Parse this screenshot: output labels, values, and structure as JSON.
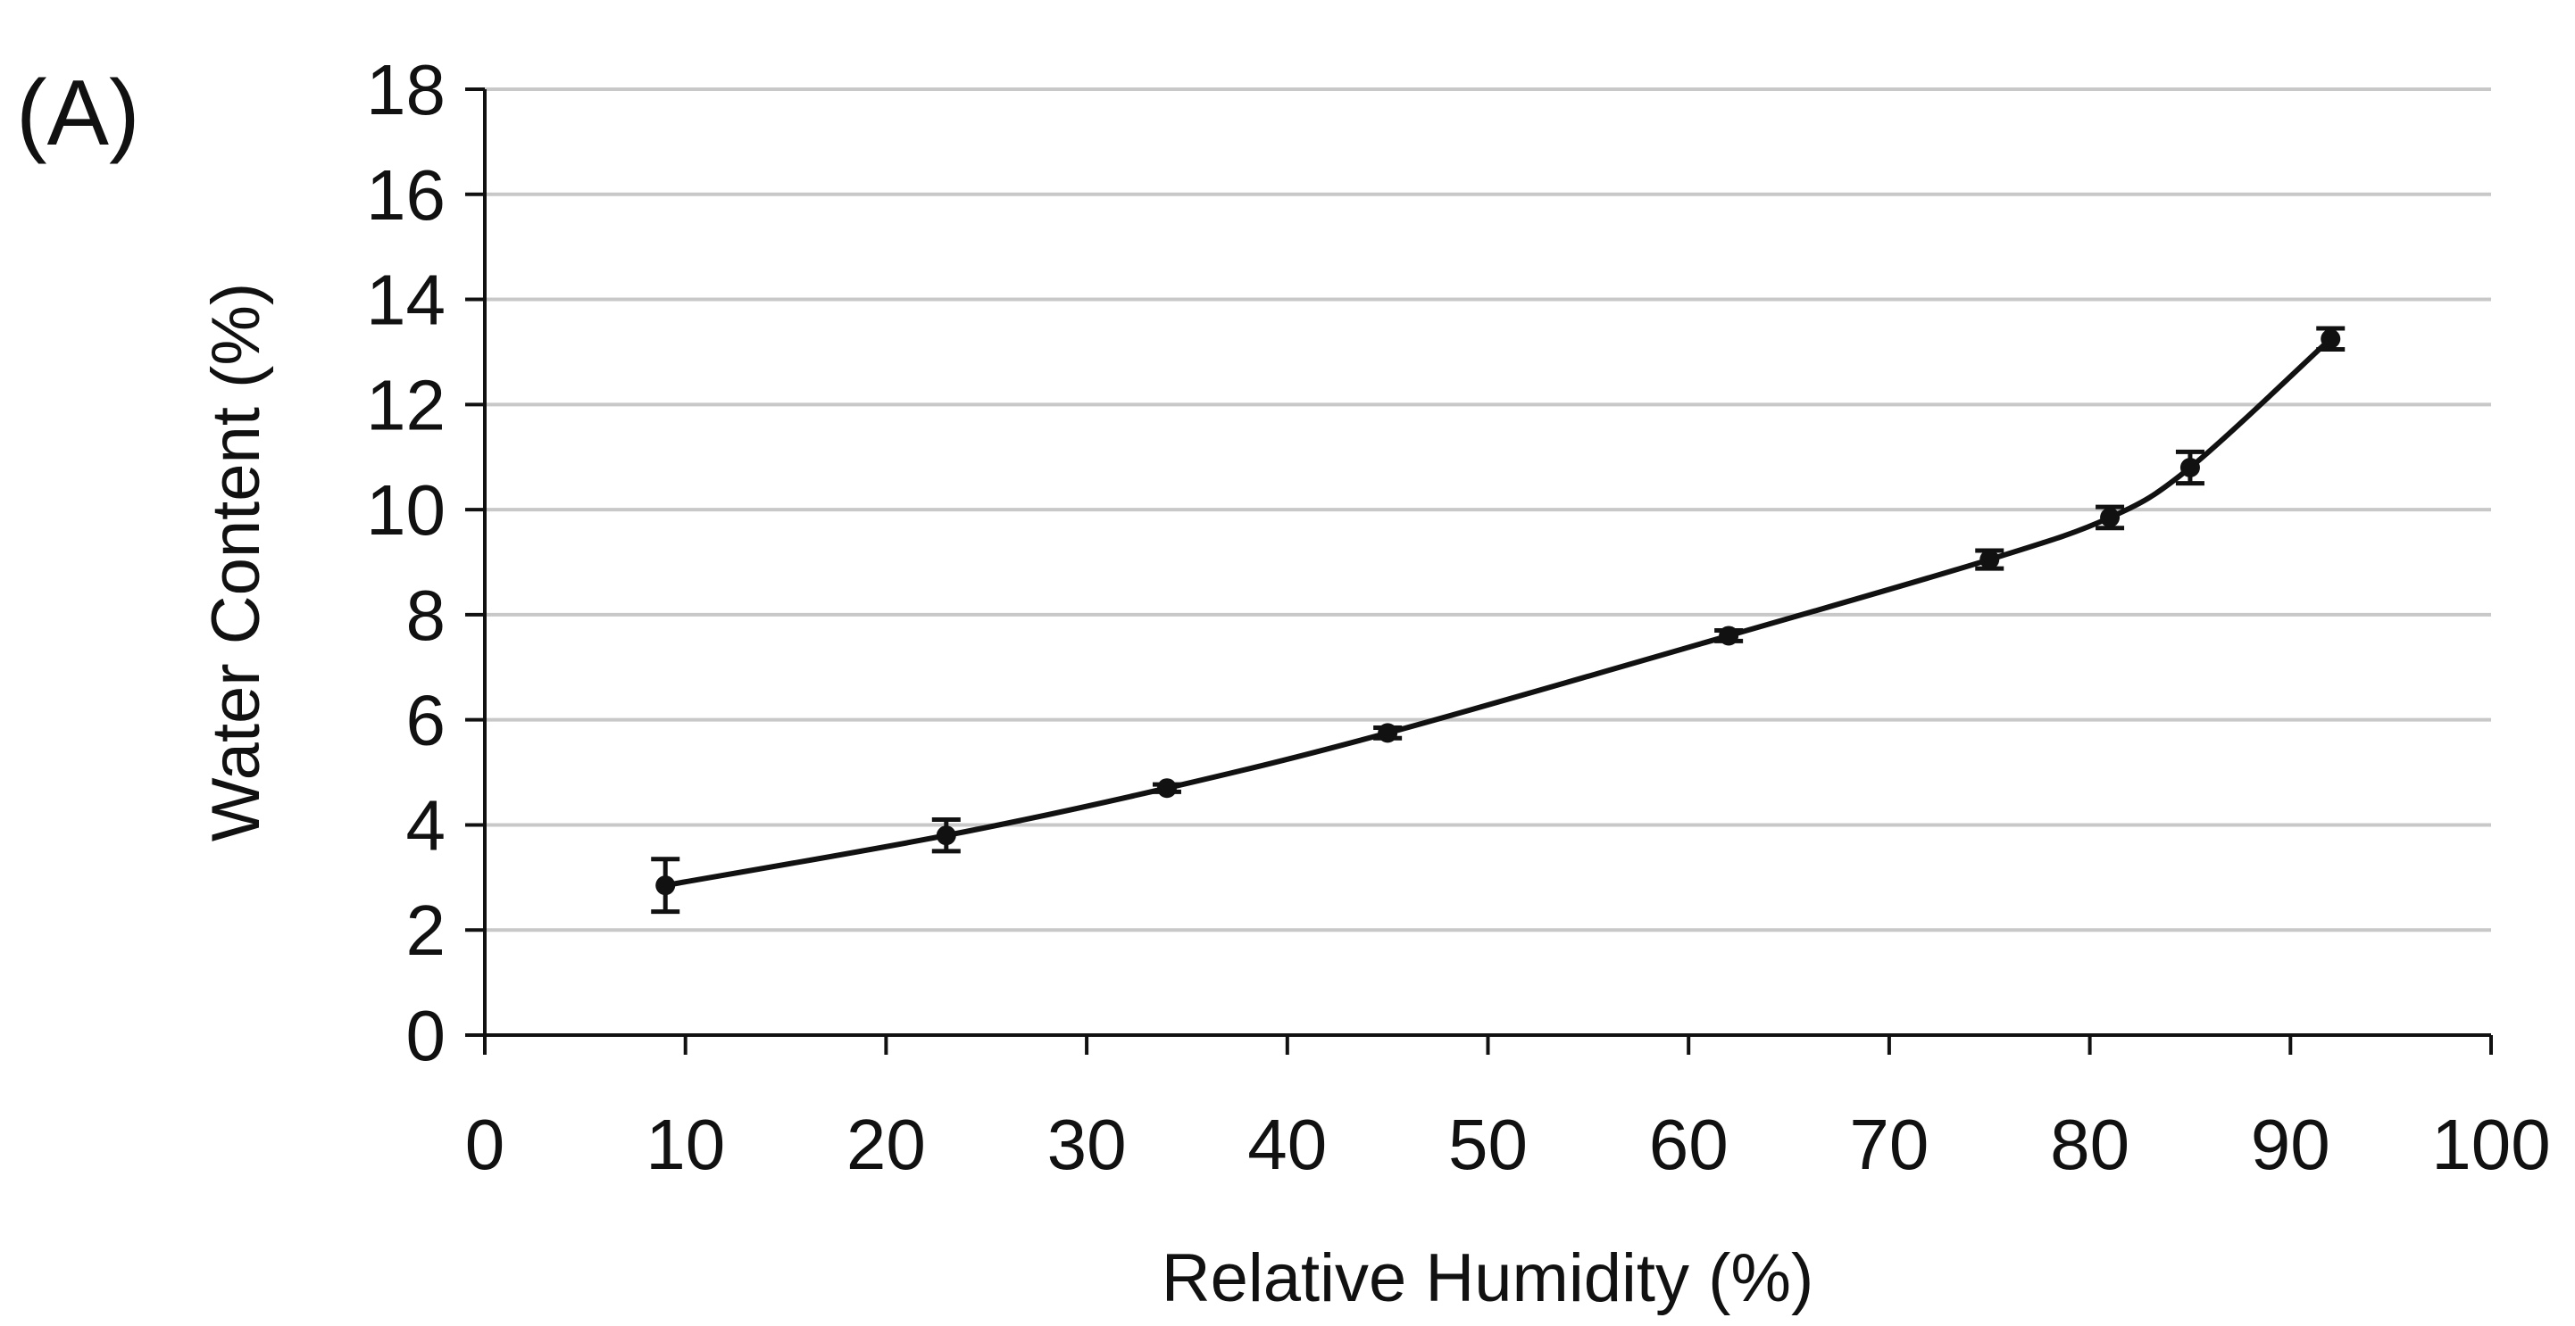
{
  "panel_label": "(A)",
  "chart_data": {
    "type": "line",
    "title": "",
    "xlabel": "Relative Humidity (%)",
    "ylabel": "Water Content (%)",
    "xlim": [
      0,
      100
    ],
    "ylim": [
      0,
      18
    ],
    "xticks": [
      0,
      10,
      20,
      30,
      40,
      50,
      60,
      70,
      80,
      90,
      100
    ],
    "yticks": [
      0,
      2,
      4,
      6,
      8,
      10,
      12,
      14,
      16,
      18
    ],
    "grid": "horizontal",
    "legend": "none",
    "series": [
      {
        "x": [
          9,
          23,
          34,
          45,
          62,
          75,
          81,
          85,
          92
        ],
        "y": [
          2.85,
          3.8,
          4.7,
          5.75,
          7.6,
          9.05,
          9.85,
          10.8,
          13.25
        ],
        "error": [
          0.5,
          0.3,
          0.07,
          0.1,
          0.1,
          0.17,
          0.2,
          0.3,
          0.2
        ]
      }
    ],
    "colors": {
      "line": "#111111",
      "grid": "#c8c8c8",
      "axis": "#111111"
    }
  }
}
